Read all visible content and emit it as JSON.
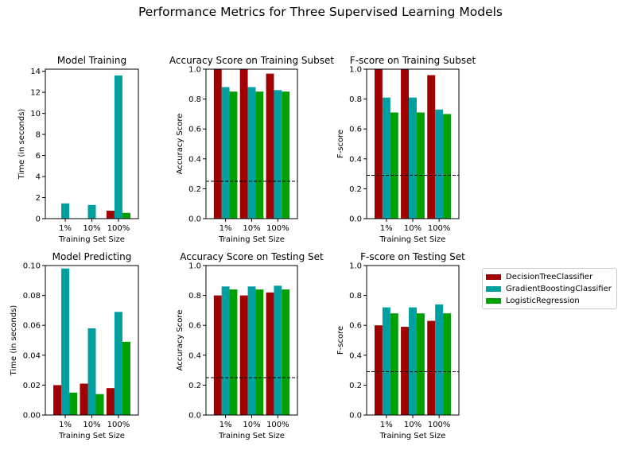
{
  "figure": {
    "title": "Performance Metrics for Three Supervised Learning Models",
    "legend": [
      {
        "name": "DecisionTreeClassifier",
        "color": "#a00000"
      },
      {
        "name": "GradientBoostingClassifier",
        "color": "#00a0a0"
      },
      {
        "name": "LogisticRegression",
        "color": "#00a000"
      }
    ]
  },
  "chart_data": [
    {
      "type": "bar",
      "title": "Model Training",
      "xlabel": "Training Set Size",
      "ylabel": "Time (in seconds)",
      "categories": [
        "1%",
        "10%",
        "100%"
      ],
      "ylim": [
        0,
        14.2
      ],
      "yticks": [
        0,
        2,
        4,
        6,
        8,
        10,
        12,
        14
      ],
      "ytick_labels": [
        "0",
        "2",
        "4",
        "6",
        "8",
        "10",
        "12",
        "14"
      ],
      "series": [
        {
          "name": "DecisionTreeClassifier",
          "values": [
            0.0,
            0.0,
            0.75
          ]
        },
        {
          "name": "GradientBoostingClassifier",
          "values": [
            1.45,
            1.3,
            13.6
          ]
        },
        {
          "name": "LogisticRegression",
          "values": [
            0.0,
            0.0,
            0.55
          ]
        }
      ]
    },
    {
      "type": "bar",
      "title": "Accuracy Score on Training Subset",
      "xlabel": "Training Set Size",
      "ylabel": "Accuracy Score",
      "categories": [
        "1%",
        "10%",
        "100%"
      ],
      "ylim": [
        0,
        1
      ],
      "yticks": [
        0,
        0.2,
        0.4,
        0.6,
        0.8,
        1.0
      ],
      "ytick_labels": [
        "0.0",
        "0.2",
        "0.4",
        "0.6",
        "0.8",
        "1.0"
      ],
      "baseline": 0.25,
      "series": [
        {
          "name": "DecisionTreeClassifier",
          "values": [
            1.0,
            1.0,
            0.97
          ]
        },
        {
          "name": "GradientBoostingClassifier",
          "values": [
            0.88,
            0.88,
            0.86
          ]
        },
        {
          "name": "LogisticRegression",
          "values": [
            0.85,
            0.85,
            0.85
          ]
        }
      ]
    },
    {
      "type": "bar",
      "title": "F-score on Training Subset",
      "xlabel": "Training Set Size",
      "ylabel": "F-score",
      "categories": [
        "1%",
        "10%",
        "100%"
      ],
      "ylim": [
        0,
        1
      ],
      "yticks": [
        0,
        0.2,
        0.4,
        0.6,
        0.8,
        1.0
      ],
      "ytick_labels": [
        "0.0",
        "0.2",
        "0.4",
        "0.6",
        "0.8",
        "1.0"
      ],
      "baseline": 0.29,
      "series": [
        {
          "name": "DecisionTreeClassifier",
          "values": [
            1.0,
            1.0,
            0.96
          ]
        },
        {
          "name": "GradientBoostingClassifier",
          "values": [
            0.81,
            0.81,
            0.73
          ]
        },
        {
          "name": "LogisticRegression",
          "values": [
            0.71,
            0.71,
            0.7
          ]
        }
      ]
    },
    {
      "type": "bar",
      "title": "Model Predicting",
      "xlabel": "Training Set Size",
      "ylabel": "Time (in seconds)",
      "categories": [
        "1%",
        "10%",
        "100%"
      ],
      "ylim": [
        0,
        0.1
      ],
      "yticks": [
        0,
        0.02,
        0.04,
        0.06,
        0.08,
        0.1
      ],
      "ytick_labels": [
        "0.00",
        "0.02",
        "0.04",
        "0.06",
        "0.08",
        "0.10"
      ],
      "series": [
        {
          "name": "DecisionTreeClassifier",
          "values": [
            0.02,
            0.021,
            0.018
          ]
        },
        {
          "name": "GradientBoostingClassifier",
          "values": [
            0.098,
            0.058,
            0.069
          ]
        },
        {
          "name": "LogisticRegression",
          "values": [
            0.015,
            0.014,
            0.049
          ]
        }
      ]
    },
    {
      "type": "bar",
      "title": "Accuracy Score on Testing Set",
      "xlabel": "Training Set Size",
      "ylabel": "Accuracy Score",
      "categories": [
        "1%",
        "10%",
        "100%"
      ],
      "ylim": [
        0,
        1
      ],
      "yticks": [
        0,
        0.2,
        0.4,
        0.6,
        0.8,
        1.0
      ],
      "ytick_labels": [
        "0.0",
        "0.2",
        "0.4",
        "0.6",
        "0.8",
        "1.0"
      ],
      "baseline": 0.25,
      "series": [
        {
          "name": "DecisionTreeClassifier",
          "values": [
            0.8,
            0.8,
            0.82
          ]
        },
        {
          "name": "GradientBoostingClassifier",
          "values": [
            0.86,
            0.86,
            0.865
          ]
        },
        {
          "name": "LogisticRegression",
          "values": [
            0.84,
            0.84,
            0.84
          ]
        }
      ]
    },
    {
      "type": "bar",
      "title": "F-score on Testing Set",
      "xlabel": "Training Set Size",
      "ylabel": "F-score",
      "categories": [
        "1%",
        "10%",
        "100%"
      ],
      "ylim": [
        0,
        1
      ],
      "yticks": [
        0,
        0.2,
        0.4,
        0.6,
        0.8,
        1.0
      ],
      "ytick_labels": [
        "0.0",
        "0.2",
        "0.4",
        "0.6",
        "0.8",
        "1.0"
      ],
      "baseline": 0.29,
      "series": [
        {
          "name": "DecisionTreeClassifier",
          "values": [
            0.6,
            0.59,
            0.63
          ]
        },
        {
          "name": "GradientBoostingClassifier",
          "values": [
            0.72,
            0.72,
            0.74
          ]
        },
        {
          "name": "LogisticRegression",
          "values": [
            0.68,
            0.68,
            0.68
          ]
        }
      ]
    }
  ]
}
